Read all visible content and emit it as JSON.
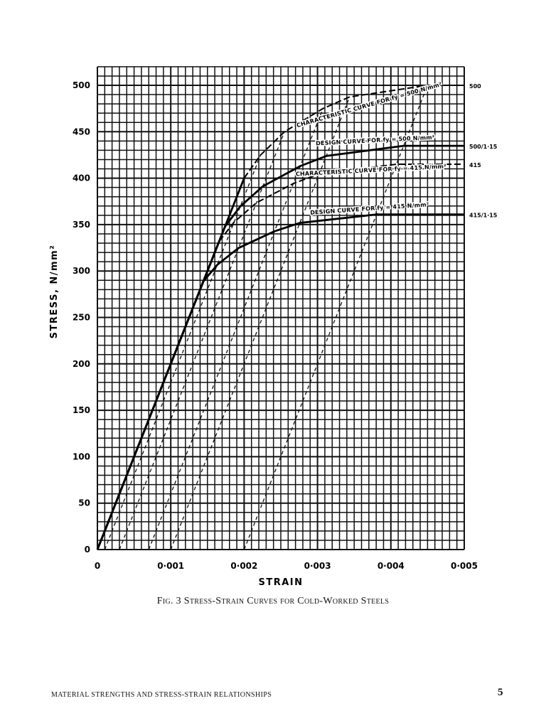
{
  "chart_data": {
    "type": "line",
    "title": "",
    "xlabel": "STRAIN",
    "ylabel": "STRESS, N/mm²",
    "xlim": [
      0,
      0.005
    ],
    "ylim": [
      0,
      520
    ],
    "grid": true,
    "x_ticks": [
      "0",
      "0·001",
      "0·002",
      "0·003",
      "0·004",
      "0·005"
    ],
    "x_tick_values": [
      0,
      0.001,
      0.002,
      0.003,
      0.004,
      0.005
    ],
    "y_ticks": [
      "0",
      "50",
      "100",
      "150",
      "200",
      "250",
      "300",
      "350",
      "400",
      "450",
      "500"
    ],
    "y_tick_values": [
      0,
      50,
      100,
      150,
      200,
      250,
      300,
      350,
      400,
      450,
      500
    ],
    "series": [
      {
        "name": "CHARACTERISTIC CURVE FOR fy = 500 N/mm²",
        "end_label": "500",
        "style": "dashed",
        "x": [
          0,
          0.002,
          0.002225,
          0.00255,
          0.003075,
          0.0034375,
          0.0045,
          0.005
        ],
        "y": [
          0,
          400,
          425,
          450,
          475,
          487.5,
          500,
          500
        ]
      },
      {
        "name": "DESIGN CURVE FOR fy = 500 N/mm²",
        "end_label": "500/1·15",
        "style": "solid",
        "x": [
          0,
          0.001739,
          0.001948,
          0.002257,
          0.002765,
          0.00312,
          0.004174,
          0.005
        ],
        "y": [
          0,
          347.8,
          369.6,
          391.3,
          413.0,
          423.9,
          434.8,
          434.8
        ]
      },
      {
        "name": "CHARACTERISTIC CURVE FOR fy = 415 N/mm²",
        "end_label": "415",
        "style": "dashed",
        "x": [
          0,
          0.00166,
          0.001864,
          0.002168,
          0.002671,
          0.003023,
          0.004075,
          0.005
        ],
        "y": [
          0,
          332,
          352.75,
          373.5,
          394.25,
          404.6,
          415,
          415
        ]
      },
      {
        "name": "DESIGN CURVE FOR fy = 415 N/mm²",
        "end_label": "415/1·15",
        "style": "solid",
        "x": [
          0,
          0.001443,
          0.001634,
          0.001924,
          0.002414,
          0.002759,
          0.003804,
          0.005
        ],
        "y": [
          0,
          288.7,
          306.7,
          324.8,
          342.8,
          351.8,
          360.9,
          360.9
        ]
      }
    ],
    "offset_lines": {
      "style": "dashed",
      "x_start": [
        0.0001,
        0.0003,
        0.0007,
        0.001,
        0.002
      ],
      "x_end": [
        0.002225,
        0.00255,
        0.003075,
        0.0034375,
        0.0045
      ],
      "y_end": [
        425,
        450,
        475,
        487.5,
        500
      ]
    }
  },
  "caption": "Fig. 3   Stress-Strain Curves for Cold-Worked Steels",
  "footer": {
    "running_title": "MATERIAL STRENGTHS AND STRESS-STRAIN RELATIONSHIPS",
    "page_number": "5"
  }
}
